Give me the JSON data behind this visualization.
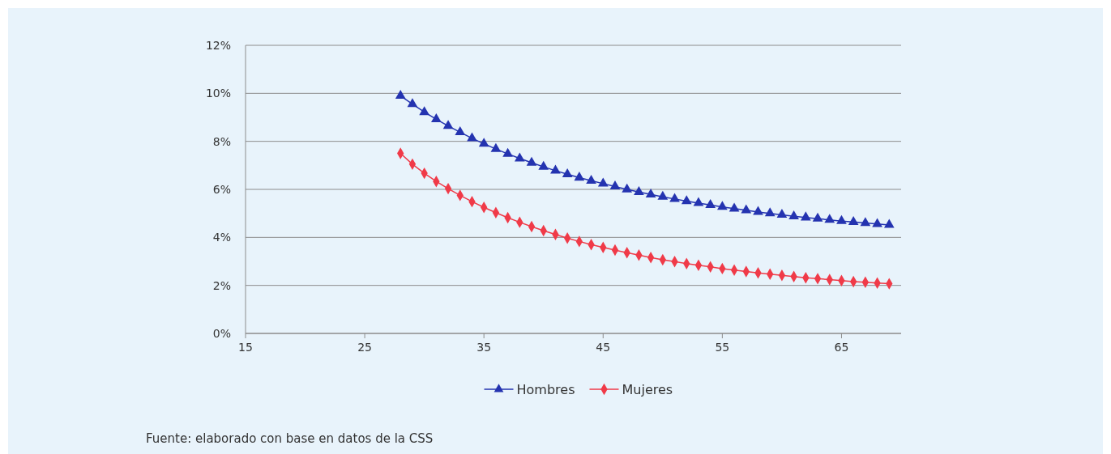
{
  "chart_data": {
    "type": "line",
    "x": [
      28,
      29,
      30,
      31,
      32,
      33,
      34,
      35,
      36,
      37,
      38,
      39,
      40,
      41,
      42,
      43,
      44,
      45,
      46,
      47,
      48,
      49,
      50,
      51,
      52,
      53,
      54,
      55,
      56,
      57,
      58,
      59,
      60,
      61,
      62,
      63,
      64,
      65,
      66,
      67,
      68,
      69
    ],
    "series": [
      {
        "name": "Hombres",
        "color": "#2433b0",
        "marker": "triangle",
        "values": [
          9.9,
          9.55,
          9.22,
          8.92,
          8.64,
          8.38,
          8.13,
          7.9,
          7.68,
          7.48,
          7.29,
          7.11,
          6.94,
          6.78,
          6.63,
          6.49,
          6.36,
          6.24,
          6.12,
          6.0,
          5.89,
          5.79,
          5.69,
          5.6,
          5.51,
          5.43,
          5.35,
          5.27,
          5.2,
          5.13,
          5.06,
          5.0,
          4.94,
          4.88,
          4.83,
          4.78,
          4.73,
          4.68,
          4.64,
          4.6,
          4.56,
          4.52
        ]
      },
      {
        "name": "Mujeres",
        "color": "#f03a48",
        "marker": "diamond",
        "values": [
          7.5,
          7.05,
          6.67,
          6.33,
          6.03,
          5.75,
          5.49,
          5.25,
          5.03,
          4.82,
          4.63,
          4.45,
          4.28,
          4.12,
          3.97,
          3.83,
          3.7,
          3.58,
          3.47,
          3.36,
          3.26,
          3.16,
          3.07,
          2.99,
          2.91,
          2.84,
          2.77,
          2.7,
          2.64,
          2.58,
          2.52,
          2.47,
          2.42,
          2.37,
          2.32,
          2.28,
          2.24,
          2.2,
          2.16,
          2.13,
          2.1,
          2.07
        ]
      }
    ],
    "xlim": [
      15,
      70
    ],
    "xticks": [
      15,
      25,
      35,
      45,
      55,
      65
    ],
    "ylim": [
      0,
      12
    ],
    "yticks": [
      {
        "value": 0,
        "label": "0%"
      },
      {
        "value": 2,
        "label": "2%"
      },
      {
        "value": 4,
        "label": "4%"
      },
      {
        "value": 6,
        "label": "6%"
      },
      {
        "value": 8,
        "label": "8%"
      },
      {
        "value": 10,
        "label": "10%"
      },
      {
        "value": 12,
        "label": "12%"
      }
    ],
    "grid": "y",
    "legend": "bottom",
    "annotations": [
      "Fuente: elaborado con base en datos de la CSS"
    ]
  }
}
